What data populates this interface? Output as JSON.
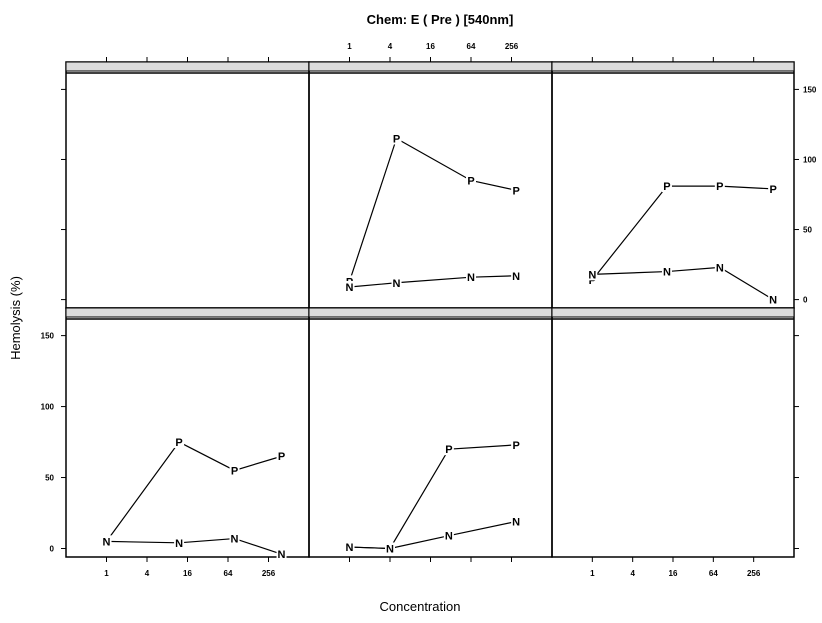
{
  "chart_data": {
    "type": "line",
    "title": "Chem: E    ( Pre )   [540nm]",
    "xlabel": "Concentration",
    "ylabel": "Hemolysis (%)",
    "x_scale": "log2",
    "x_ticks": [
      1,
      4,
      16,
      64,
      256
    ],
    "x_tick_labels": [
      "1",
      "4",
      "16",
      "64",
      "256"
    ],
    "y_ticks": [
      0,
      50,
      100,
      150
    ],
    "y_tick_labels": [
      "0",
      "50",
      "100",
      "150"
    ],
    "ylim": [
      -6,
      161
    ],
    "xlim": [
      0.25,
      1024
    ],
    "layout": {
      "columns": 3,
      "rows": 2
    },
    "panels": [
      {
        "row": "top",
        "col": 1,
        "strip": "",
        "series": []
      },
      {
        "row": "top",
        "col": 2,
        "strip": "",
        "series": [
          {
            "marker": "P",
            "x": [
              1,
              5,
              64,
              300
            ],
            "y": [
              13,
              115,
              85,
              78
            ]
          },
          {
            "marker": "N",
            "x": [
              1,
              5,
              64,
              300
            ],
            "y": [
              9,
              12,
              16,
              17
            ]
          }
        ]
      },
      {
        "row": "top",
        "col": 3,
        "strip": "",
        "series": [
          {
            "marker": "P",
            "x": [
              1,
              13,
              80,
              500
            ],
            "y": [
              14,
              81,
              81,
              79
            ]
          },
          {
            "marker": "N",
            "x": [
              1,
              13,
              80,
              500
            ],
            "y": [
              18,
              20,
              23,
              0
            ]
          }
        ]
      },
      {
        "row": "bottom",
        "col": 1,
        "strip": "",
        "series": [
          {
            "marker": "P",
            "x": [
              1,
              12,
              80,
              400
            ],
            "y": [
              5,
              75,
              55,
              65
            ]
          },
          {
            "marker": "N",
            "x": [
              1,
              12,
              80,
              400
            ],
            "y": [
              5,
              4,
              7,
              -4
            ]
          }
        ]
      },
      {
        "row": "bottom",
        "col": 2,
        "strip": "",
        "series": [
          {
            "marker": "P",
            "x": [
              1,
              4,
              30,
              300
            ],
            "y": [
              1,
              0,
              70,
              73
            ]
          },
          {
            "marker": "N",
            "x": [
              1,
              4,
              30,
              300
            ],
            "y": [
              1,
              0,
              9,
              19
            ]
          }
        ]
      },
      {
        "row": "bottom",
        "col": 3,
        "strip": "",
        "series": []
      }
    ]
  }
}
